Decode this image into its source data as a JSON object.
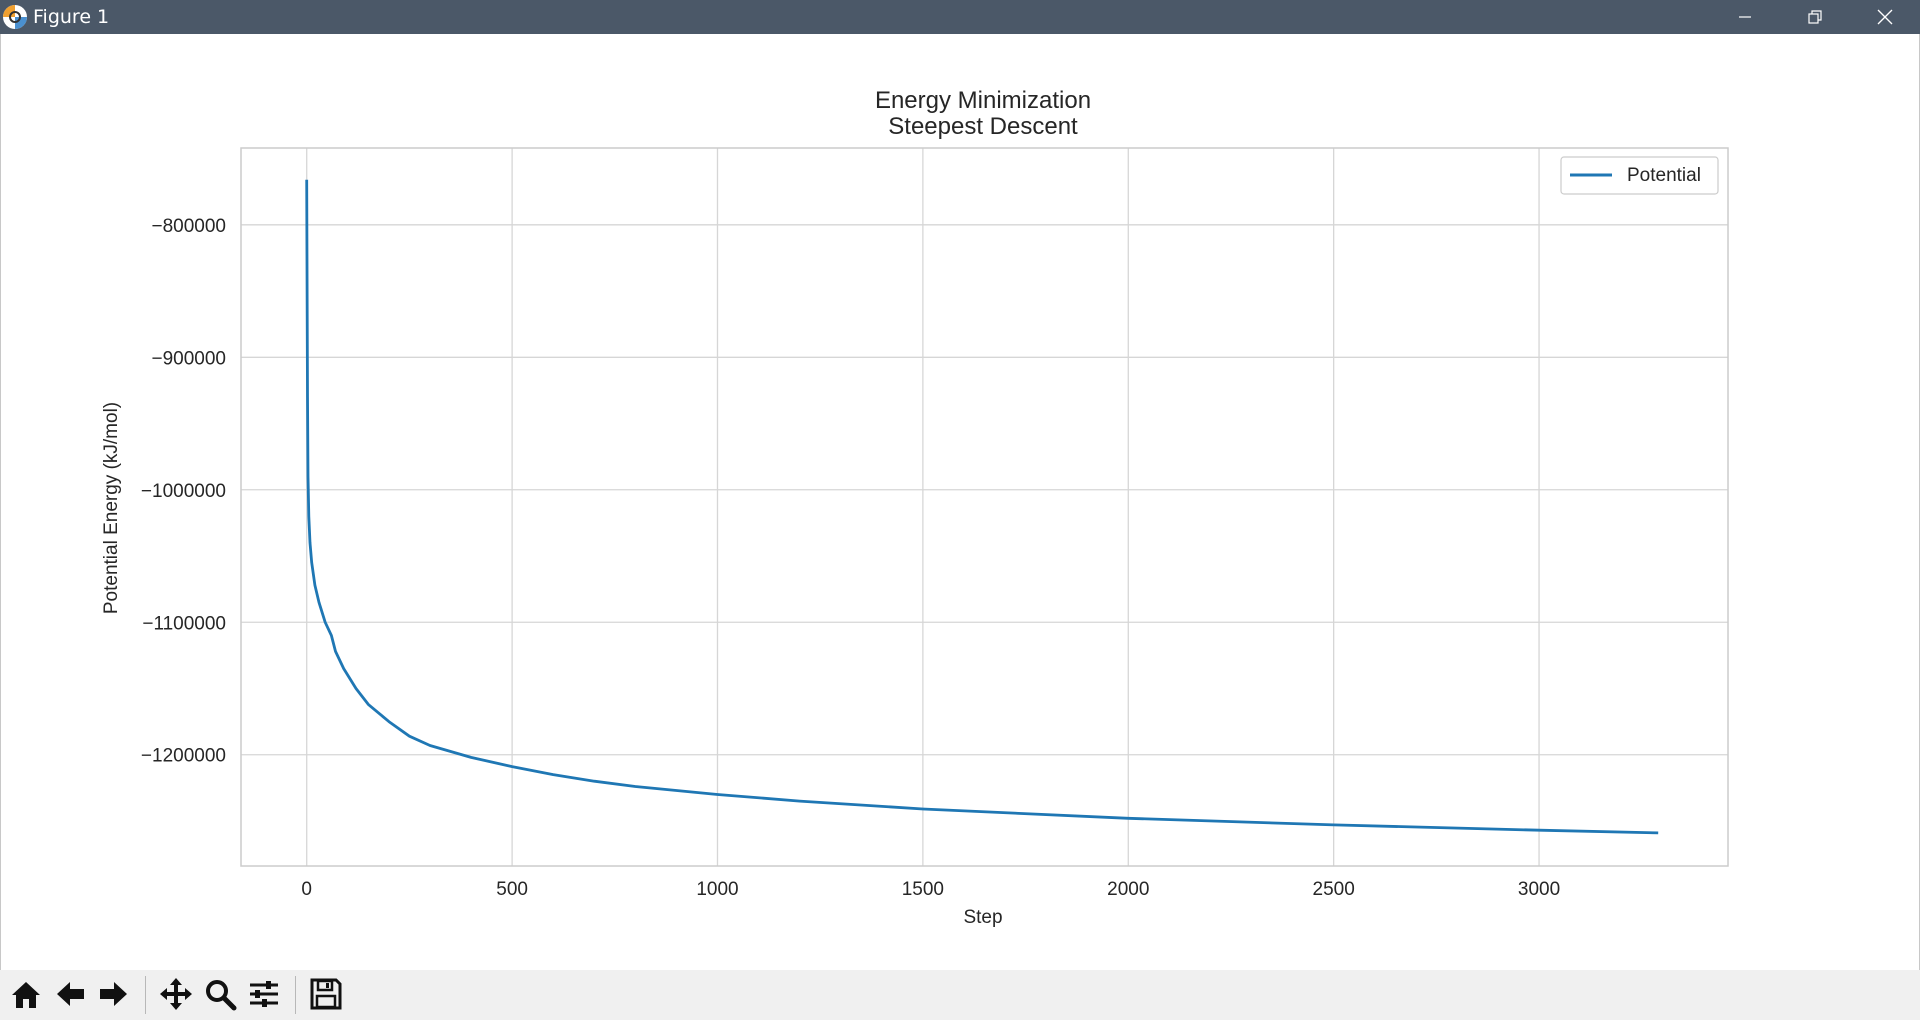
{
  "window": {
    "title": "Figure 1",
    "controls": [
      "minimize-icon",
      "restore-icon",
      "close-icon"
    ]
  },
  "toolbar": {
    "buttons": [
      "home-icon",
      "back-arrow-icon",
      "forward-arrow-icon",
      "pan-icon",
      "zoom-icon",
      "configure-subplots-icon",
      "save-icon"
    ]
  },
  "chart_data": {
    "type": "line",
    "title": "Energy Minimization",
    "subtitle": "Steepest Descent",
    "xlabel": "Step",
    "ylabel": "Potential Energy (kJ/mol)",
    "xlim": [
      -160,
      3460
    ],
    "ylim": [
      -1284000,
      -742000
    ],
    "xticks": [
      0,
      500,
      1000,
      1500,
      2000,
      2500,
      3000
    ],
    "yticks": [
      -800000,
      -900000,
      -1000000,
      -1100000,
      -1200000
    ],
    "grid": true,
    "legend": "top-right",
    "series": [
      {
        "name": "Potential",
        "color": "#1f77b4",
        "x": [
          0,
          1,
          2,
          3,
          5,
          8,
          12,
          20,
          30,
          45,
          60,
          70,
          90,
          120,
          150,
          200,
          250,
          300,
          400,
          500,
          600,
          700,
          800,
          1000,
          1200,
          1500,
          2000,
          2500,
          3000,
          3290
        ],
        "y": [
          -766000,
          -850000,
          -930000,
          -990000,
          -1020000,
          -1040000,
          -1055000,
          -1072000,
          -1085000,
          -1100000,
          -1110000,
          -1122000,
          -1135000,
          -1150000,
          -1162000,
          -1175000,
          -1186000,
          -1193000,
          -1202000,
          -1209000,
          -1215000,
          -1220000,
          -1224000,
          -1230000,
          -1235000,
          -1241000,
          -1248000,
          -1253000,
          -1257000,
          -1259000
        ]
      }
    ]
  }
}
